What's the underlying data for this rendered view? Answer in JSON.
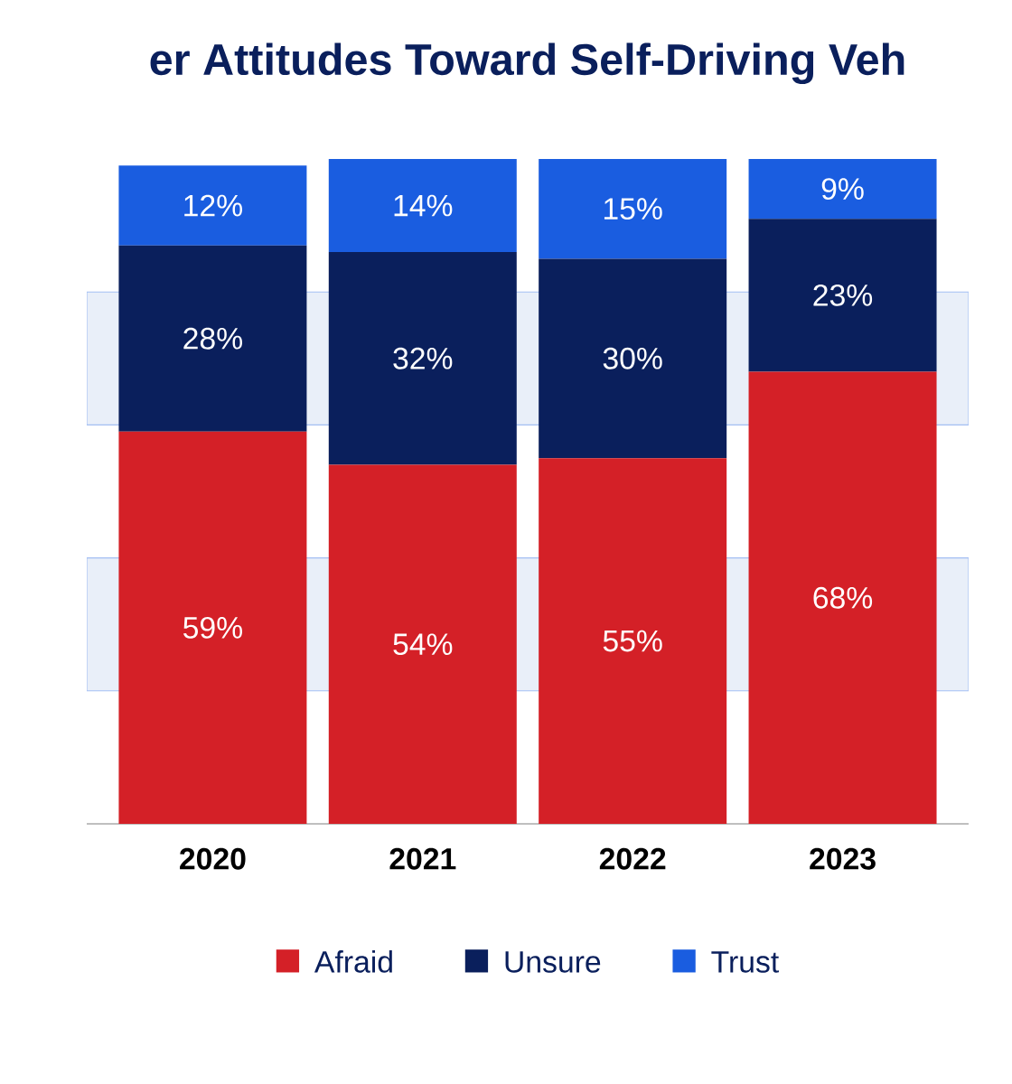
{
  "chart_data": {
    "type": "bar",
    "stacked": true,
    "title": "er Attitudes Toward Self-Driving Veh",
    "categories": [
      "2020",
      "2021",
      "2022",
      "2023"
    ],
    "series": [
      {
        "name": "Afraid",
        "color": "#d42027",
        "values": [
          59,
          54,
          55,
          68
        ],
        "value_labels": [
          "59%",
          "54%",
          "55%",
          "68%"
        ]
      },
      {
        "name": "Unsure",
        "color": "#0a1f5c",
        "values": [
          28,
          32,
          30,
          23
        ],
        "value_labels": [
          "28%",
          "32%",
          "30%",
          "23%"
        ]
      },
      {
        "name": "Trust",
        "color": "#1a5de0",
        "values": [
          12,
          14,
          15,
          9
        ],
        "value_labels": [
          "12%",
          "14%",
          "15%",
          "9%"
        ]
      }
    ],
    "ylim": [
      0,
      100
    ],
    "bands": [
      {
        "axis": "y",
        "from": 20,
        "to": 40,
        "color": "#e9eff9"
      },
      {
        "axis": "y",
        "from": 60,
        "to": 80,
        "color": "#e9eff9"
      }
    ],
    "legend": "bottom"
  }
}
